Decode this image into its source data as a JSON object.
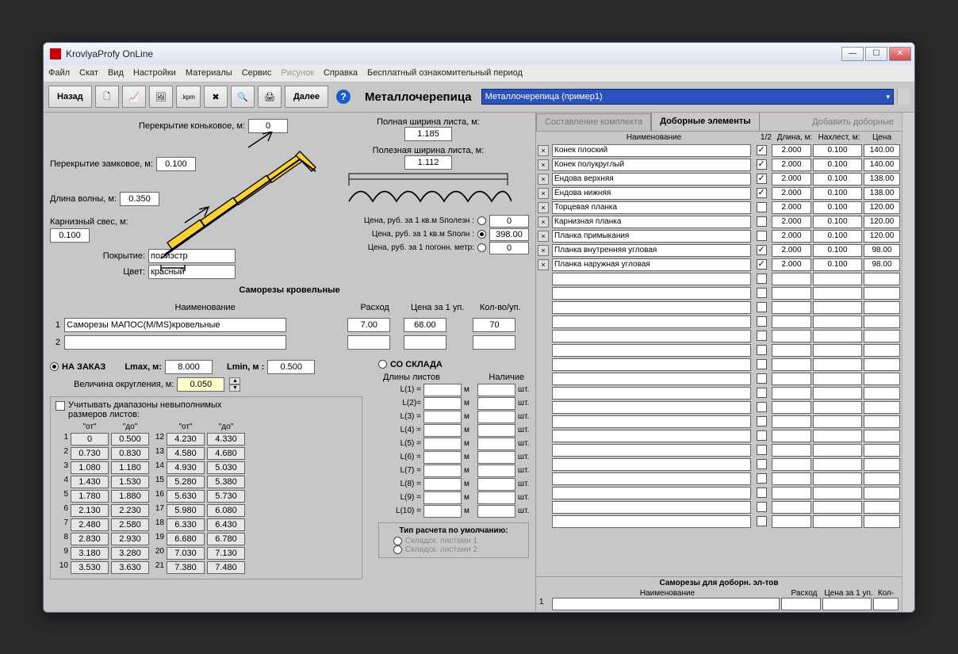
{
  "window": {
    "title": "KrovlyaProfy OnLine"
  },
  "menu": [
    "Файл",
    "Скат",
    "Вид",
    "Настройки",
    "Материалы",
    "Сервис",
    "Рисунок",
    "Справка",
    "Бесплатный ознакомительный период"
  ],
  "menu_disabled_idx": 6,
  "toolbar": {
    "back": "Назад",
    "next": "Далее",
    "category": "Металлочерепица",
    "profile": "Металлочерепица (пример1)"
  },
  "params": {
    "ridge_overlap_label": "Перекрытие коньковое, м:",
    "ridge_overlap": "0",
    "lock_overlap_label": "Перекрытие замковое, м:",
    "lock_overlap": "0.100",
    "wave_len_label": "Длина волны, м:",
    "wave_len": "0.350",
    "eave_label": "Карнизный свес, м:",
    "eave": "0.100",
    "full_width_label": "Полная ширина листа, м:",
    "full_width": "1.185",
    "useful_width_label": "Полезная ширина листа, м:",
    "useful_width": "1.112",
    "coating_label": "Покрытие:",
    "coating": "полиэстр",
    "color_label": "Цвет:",
    "color_val": "красный"
  },
  "price": {
    "l1": "Цена, руб. за 1 кв.м Sполезн :",
    "v1": "0",
    "l2": "Цена, руб. за 1 кв.м Sполн :",
    "v2": "398.00",
    "l3": "Цена, руб. за 1 погонн. метр:",
    "v3": "0",
    "sel": 1
  },
  "screws": {
    "title": "Саморезы кровельные",
    "cols": [
      "Наименование",
      "Расход",
      "Цена за 1 уп.",
      "Кол-во/уп."
    ],
    "rows": [
      {
        "n": "1",
        "name": "Саморезы МАПОС(M/MS)кровельные",
        "rate": "7.00",
        "price": "68.00",
        "qty": "70"
      },
      {
        "n": "2",
        "name": "",
        "rate": "",
        "price": "",
        "qty": ""
      }
    ]
  },
  "order": {
    "on_demand": "НА ЗАКАЗ",
    "from_stock": "СО СКЛАДА",
    "lmax_l": "Lmax, м:",
    "lmax": "8.000",
    "lmin_l": "Lmin, м :",
    "lmin": "0.500",
    "round_l": "Величина округления, м:",
    "round": "0.050"
  },
  "ranges": {
    "chk_label": "Учитывать диапазоны невыполнимых размеров листов:",
    "head": [
      "\"от\"",
      "\"до\"",
      "\"от\"",
      "\"до\""
    ],
    "rows": [
      [
        "1",
        "0",
        "0.500",
        "12",
        "4.230",
        "4.330"
      ],
      [
        "2",
        "0.730",
        "0.830",
        "13",
        "4.580",
        "4.680"
      ],
      [
        "3",
        "1.080",
        "1.180",
        "14",
        "4.930",
        "5.030"
      ],
      [
        "4",
        "1.430",
        "1.530",
        "15",
        "5.280",
        "5.380"
      ],
      [
        "5",
        "1.780",
        "1.880",
        "16",
        "5.630",
        "5.730"
      ],
      [
        "6",
        "2.130",
        "2.230",
        "17",
        "5.980",
        "6.080"
      ],
      [
        "7",
        "2.480",
        "2.580",
        "18",
        "6.330",
        "6.430"
      ],
      [
        "8",
        "2.830",
        "2.930",
        "19",
        "6.680",
        "6.780"
      ],
      [
        "9",
        "3.180",
        "3.280",
        "20",
        "7.030",
        "7.130"
      ],
      [
        "10",
        "3.530",
        "3.630",
        "21",
        "7.380",
        "7.480"
      ]
    ]
  },
  "stock": {
    "col1": "Длины листов",
    "col2": "Наличие",
    "rows": [
      "L(1) =",
      "L(2)=",
      "L(3) =",
      "L(4) =",
      "L(5) =",
      "L(6) =",
      "L(7) =",
      "L(8) =",
      "L(9) =",
      "L(10) ="
    ],
    "unit_m": "м",
    "unit_pc": "шт."
  },
  "calc_type": {
    "title": "Тип расчета по умолчанию:",
    "o1": "Складск. листами 1",
    "o2": "Складск. листами 2"
  },
  "right": {
    "tab1": "Составление комплекта",
    "tab2": "Доборные элементы",
    "tab3": "Добавить доборные",
    "head": [
      "Наименование",
      "1/2",
      "Длина, м:",
      "Нахлест, м:",
      "Цена"
    ],
    "rows": [
      {
        "name": "Конек плоский",
        "half": true,
        "len": "2.000",
        "ovl": "0.100",
        "price": "140.00"
      },
      {
        "name": "Конек полукруглый",
        "half": true,
        "len": "2.000",
        "ovl": "0.100",
        "price": "140.00"
      },
      {
        "name": "Ендова верхняя",
        "half": true,
        "len": "2.000",
        "ovl": "0.100",
        "price": "138.00"
      },
      {
        "name": "Ендова нижняя",
        "half": true,
        "len": "2.000",
        "ovl": "0.100",
        "price": "138.00"
      },
      {
        "name": "Торцевая планка",
        "half": false,
        "len": "2.000",
        "ovl": "0.100",
        "price": "120.00"
      },
      {
        "name": "Карнизная планка",
        "half": false,
        "len": "2.000",
        "ovl": "0.100",
        "price": "120.00"
      },
      {
        "name": "Планка примыкания",
        "half": false,
        "len": "2.000",
        "ovl": "0.100",
        "price": "120.00"
      },
      {
        "name": "Планка внутренняя угловая",
        "half": true,
        "len": "2.000",
        "ovl": "0.100",
        "price": "98.00"
      },
      {
        "name": "Планка наружная угловая",
        "half": true,
        "len": "2.000",
        "ovl": "0.100",
        "price": "98.00"
      }
    ],
    "empty_rows": 18
  },
  "fasten": {
    "title": "Саморезы для доборн. эл-тов",
    "head": [
      "Наименование",
      "Расход",
      "Цена за 1 уп.",
      "Кол-"
    ]
  },
  "colors": {
    "tile": "#ffd232",
    "outline": "#000000",
    "accent": "#2a52be"
  }
}
